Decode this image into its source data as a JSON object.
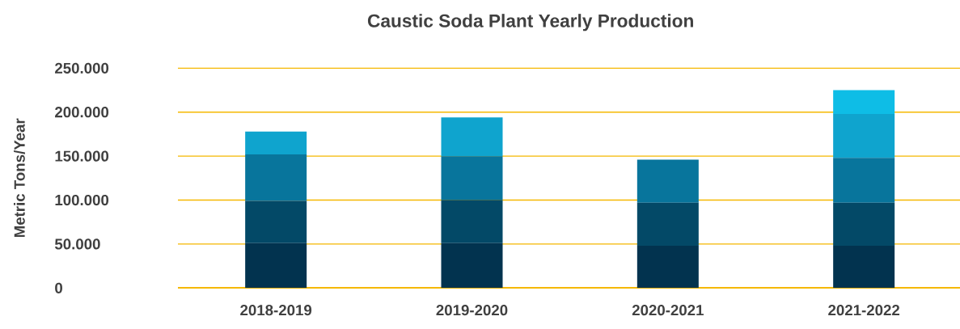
{
  "chart_data": {
    "type": "bar",
    "title": "Caustic Soda Plant  Yearly Production",
    "ylabel": "Metric Tons/Year",
    "categories": [
      "2018-2019",
      "2019-2020",
      "2020-2021",
      "2021-2022"
    ],
    "stacked": true,
    "series": [
      {
        "color": "#02334f",
        "values": [
          51000,
          51000,
          48000,
          48000
        ]
      },
      {
        "color": "#034967",
        "values": [
          48000,
          49000,
          49000,
          49000
        ]
      },
      {
        "color": "#08759c",
        "values": [
          53000,
          50000,
          49000,
          51000
        ]
      },
      {
        "color": "#0fa4ce",
        "values": [
          26000,
          44000,
          null,
          50000
        ]
      },
      {
        "color": "#0ebde6",
        "values": [
          null,
          null,
          null,
          27000
        ]
      }
    ],
    "ylim": [
      0,
      250000
    ],
    "yticks": [
      {
        "value": 0,
        "label": "0"
      },
      {
        "value": 50000,
        "label": "50.000"
      },
      {
        "value": 100000,
        "label": "100.000"
      },
      {
        "value": 150000,
        "label": "150.000"
      },
      {
        "value": 200000,
        "label": "200.000"
      },
      {
        "value": 250000,
        "label": "250.000"
      }
    ],
    "grid": "y"
  }
}
